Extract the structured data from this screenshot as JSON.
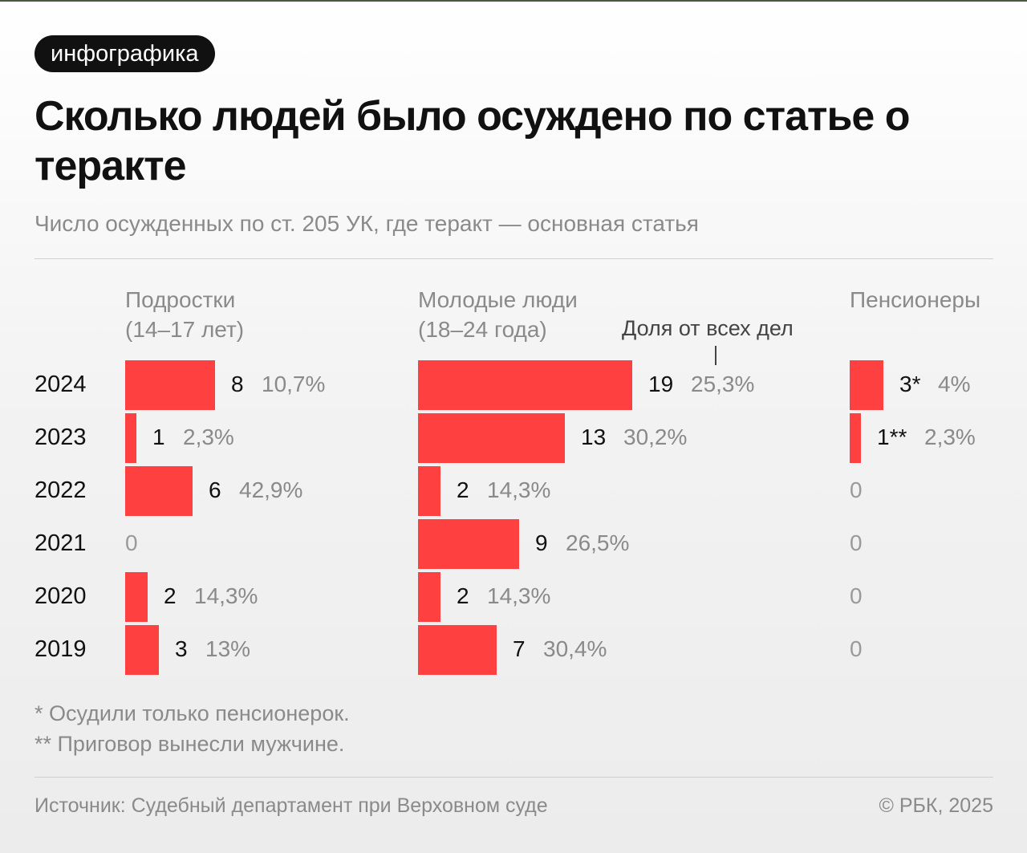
{
  "badge": "инфографика",
  "title": "Сколько людей было осуждено по статье о теракте",
  "subtitle": "Число осужденных по ст. 205 УК, где теракт — основная статья",
  "share_label": "Доля от всех дел",
  "chart_data": {
    "type": "bar",
    "orientation": "horizontal",
    "categories": [
      "2024",
      "2023",
      "2022",
      "2021",
      "2020",
      "2019"
    ],
    "series": [
      {
        "name": "Подростки",
        "name_sub": "(14–17 лет)",
        "values": [
          8,
          1,
          6,
          0,
          2,
          3
        ],
        "labels": [
          "8",
          "1",
          "6",
          "0",
          "2",
          "3"
        ],
        "shares": [
          "10,7%",
          "2,3%",
          "42,9%",
          "",
          "14,3%",
          "13%"
        ]
      },
      {
        "name": "Молодые люди",
        "name_sub": "(18–24 года)",
        "values": [
          19,
          13,
          2,
          9,
          2,
          7
        ],
        "labels": [
          "19",
          "13",
          "2",
          "9",
          "2",
          "7"
        ],
        "shares": [
          "25,3%",
          "30,2%",
          "14,3%",
          "26,5%",
          "14,3%",
          "30,4%"
        ]
      },
      {
        "name": "Пенсионеры",
        "name_sub": "",
        "values": [
          3,
          1,
          0,
          0,
          0,
          0
        ],
        "labels": [
          "3*",
          "1**",
          "0",
          "0",
          "0",
          "0"
        ],
        "shares": [
          "4%",
          "2,3%",
          "",
          "",
          "",
          ""
        ]
      }
    ],
    "bar_color": "#ff4040"
  },
  "footnotes": [
    "* Осудили только пенсионерок.",
    "** Приговор вынесли мужчине."
  ],
  "source": "Источник: Судебный департамент при Верховном суде",
  "copyright": "© РБК, 2025"
}
